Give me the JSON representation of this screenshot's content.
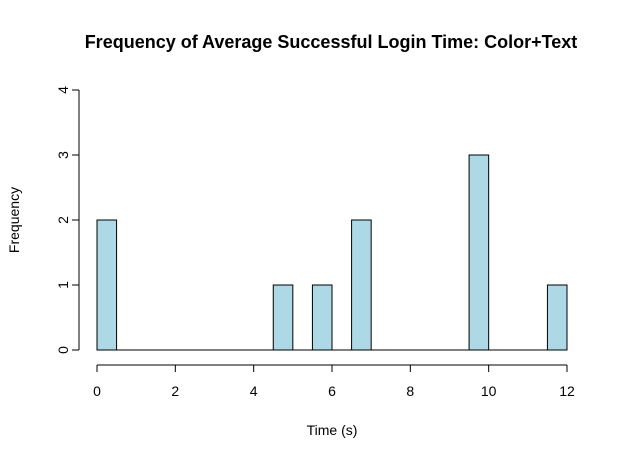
{
  "chart_data": {
    "type": "bar",
    "title": "Frequency of Average Successful Login Time: Color+Text",
    "xlabel": "Time (s)",
    "ylabel": "Frequency",
    "xlim": [
      0,
      12
    ],
    "ylim": [
      0,
      4
    ],
    "x_ticks": [
      "0",
      "2",
      "4",
      "6",
      "8",
      "10",
      "12"
    ],
    "y_ticks": [
      "0",
      "1",
      "2",
      "3",
      "4"
    ],
    "bin_width": 0.5,
    "bins": [
      {
        "start": 0.0,
        "end": 0.5,
        "count": 2
      },
      {
        "start": 4.5,
        "end": 5.0,
        "count": 1
      },
      {
        "start": 5.5,
        "end": 6.0,
        "count": 1
      },
      {
        "start": 6.5,
        "end": 7.0,
        "count": 2
      },
      {
        "start": 9.5,
        "end": 10.0,
        "count": 3
      },
      {
        "start": 11.5,
        "end": 12.0,
        "count": 1
      }
    ],
    "bar_color": "#ADD8E6",
    "bar_stroke": "#000000",
    "grid": false
  }
}
